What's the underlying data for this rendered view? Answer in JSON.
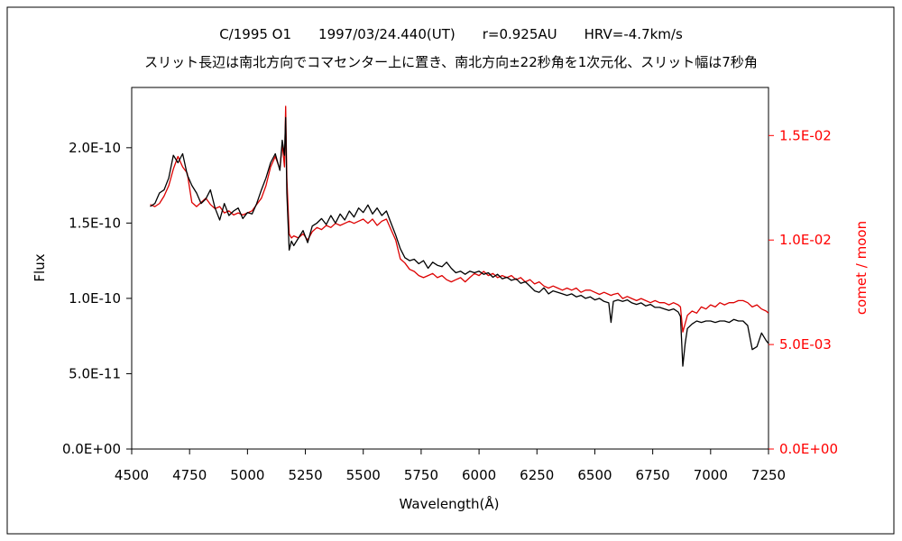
{
  "chart_data": {
    "type": "line",
    "title": "C/1995 O1　　1997/03/24.440(UT)　　r=0.925AU　　HRV=-4.7km/s",
    "subtitle": "スリット長辺は南北方向でコマセンター上に置き、南北方向±22秒角を1次元化、スリット幅は7秒角",
    "xlabel": "Wavelength(Å)",
    "ylabel": "Flux",
    "y2label": "comet / moon",
    "xlim": [
      4500,
      7250
    ],
    "ylim": [
      0,
      2.4e-10
    ],
    "y2lim": [
      0,
      0.0173
    ],
    "x_ticks": [
      "4500",
      "4750",
      "5000",
      "5250",
      "5500",
      "5750",
      "6000",
      "6250",
      "6500",
      "6750",
      "7000",
      "7250"
    ],
    "y_ticks": [
      "0.0E+00",
      "5.0E-11",
      "1.0E-10",
      "1.5E-10",
      "2.0E-10"
    ],
    "y2_ticks": [
      "0.0E+00",
      "5.0E-03",
      "1.0E-02",
      "1.5E-02"
    ],
    "colors": {
      "flux": "#000000",
      "ratio": "#dd0000",
      "axis": "#000000",
      "y2axis": "#ff0000"
    },
    "series": [
      {
        "axis": "left",
        "x": [
          4580,
          4600,
          4620,
          4640,
          4660,
          4680,
          4700,
          4720,
          4740,
          4760,
          4780,
          4800,
          4820,
          4840,
          4860,
          4880,
          4900,
          4920,
          4940,
          4960,
          4980,
          5000,
          5020,
          5040,
          5060,
          5080,
          5100,
          5120,
          5140,
          5150,
          5160,
          5165,
          5170,
          5180,
          5190,
          5200,
          5220,
          5240,
          5260,
          5280,
          5300,
          5320,
          5340,
          5360,
          5380,
          5400,
          5420,
          5440,
          5460,
          5480,
          5500,
          5520,
          5540,
          5560,
          5580,
          5600,
          5620,
          5640,
          5660,
          5680,
          5700,
          5720,
          5740,
          5760,
          5780,
          5800,
          5820,
          5840,
          5860,
          5880,
          5900,
          5920,
          5940,
          5960,
          5980,
          6000,
          6020,
          6040,
          6060,
          6080,
          6100,
          6120,
          6140,
          6160,
          6180,
          6200,
          6220,
          6240,
          6260,
          6280,
          6300,
          6320,
          6340,
          6360,
          6380,
          6400,
          6420,
          6440,
          6460,
          6480,
          6500,
          6520,
          6540,
          6560,
          6570,
          6580,
          6600,
          6620,
          6640,
          6660,
          6680,
          6700,
          6720,
          6740,
          6760,
          6780,
          6800,
          6820,
          6840,
          6860,
          6870,
          6880,
          6890,
          6900,
          6920,
          6940,
          6960,
          6980,
          7000,
          7020,
          7040,
          7060,
          7080,
          7100,
          7120,
          7140,
          7160,
          7180,
          7200,
          7220,
          7240,
          7250
        ],
        "y": [
          1.61e-10,
          1.63e-10,
          1.7e-10,
          1.72e-10,
          1.8e-10,
          1.95e-10,
          1.9e-10,
          1.96e-10,
          1.82e-10,
          1.75e-10,
          1.7e-10,
          1.63e-10,
          1.66e-10,
          1.72e-10,
          1.6e-10,
          1.52e-10,
          1.63e-10,
          1.55e-10,
          1.58e-10,
          1.6e-10,
          1.53e-10,
          1.57e-10,
          1.56e-10,
          1.63e-10,
          1.72e-10,
          1.8e-10,
          1.9e-10,
          1.96e-10,
          1.85e-10,
          2.05e-10,
          1.95e-10,
          2.2e-10,
          1.7e-10,
          1.32e-10,
          1.38e-10,
          1.35e-10,
          1.4e-10,
          1.45e-10,
          1.37e-10,
          1.48e-10,
          1.5e-10,
          1.53e-10,
          1.49e-10,
          1.55e-10,
          1.5e-10,
          1.56e-10,
          1.52e-10,
          1.58e-10,
          1.54e-10,
          1.6e-10,
          1.57e-10,
          1.62e-10,
          1.56e-10,
          1.6e-10,
          1.55e-10,
          1.58e-10,
          1.5e-10,
          1.42e-10,
          1.33e-10,
          1.27e-10,
          1.25e-10,
          1.26e-10,
          1.23e-10,
          1.25e-10,
          1.2e-10,
          1.24e-10,
          1.22e-10,
          1.21e-10,
          1.24e-10,
          1.2e-10,
          1.17e-10,
          1.18e-10,
          1.16e-10,
          1.18e-10,
          1.17e-10,
          1.18e-10,
          1.16e-10,
          1.17e-10,
          1.14e-10,
          1.16e-10,
          1.13e-10,
          1.14e-10,
          1.12e-10,
          1.13e-10,
          1.1e-10,
          1.11e-10,
          1.08e-10,
          1.05e-10,
          1.04e-10,
          1.07e-10,
          1.03e-10,
          1.05e-10,
          1.04e-10,
          1.03e-10,
          1.02e-10,
          1.03e-10,
          1.01e-10,
          1.02e-10,
          1e-10,
          1.01e-10,
          9.9e-11,
          1e-10,
          9.8e-11,
          9.7e-11,
          8.4e-11,
          9.8e-11,
          9.9e-11,
          9.8e-11,
          9.9e-11,
          9.7e-11,
          9.6e-11,
          9.7e-11,
          9.5e-11,
          9.6e-11,
          9.4e-11,
          9.4e-11,
          9.3e-11,
          9.2e-11,
          9.3e-11,
          9.1e-11,
          8.8e-11,
          5.5e-11,
          7e-11,
          8e-11,
          8.3e-11,
          8.5e-11,
          8.4e-11,
          8.5e-11,
          8.5e-11,
          8.4e-11,
          8.5e-11,
          8.5e-11,
          8.4e-11,
          8.6e-11,
          8.5e-11,
          8.5e-11,
          8.2e-11,
          6.6e-11,
          6.8e-11,
          7.7e-11,
          7.2e-11,
          7e-11
        ]
      },
      {
        "axis": "right",
        "x": [
          4580,
          4600,
          4620,
          4640,
          4660,
          4680,
          4700,
          4720,
          4740,
          4760,
          4780,
          4800,
          4820,
          4840,
          4860,
          4880,
          4900,
          4920,
          4940,
          4960,
          4980,
          5000,
          5020,
          5040,
          5060,
          5080,
          5100,
          5120,
          5140,
          5150,
          5160,
          5165,
          5170,
          5180,
          5190,
          5200,
          5220,
          5240,
          5260,
          5280,
          5300,
          5320,
          5340,
          5360,
          5380,
          5400,
          5420,
          5440,
          5460,
          5480,
          5500,
          5520,
          5540,
          5560,
          5580,
          5600,
          5620,
          5640,
          5660,
          5680,
          5700,
          5720,
          5740,
          5760,
          5780,
          5800,
          5820,
          5840,
          5860,
          5880,
          5900,
          5920,
          5940,
          5960,
          5980,
          6000,
          6020,
          6040,
          6060,
          6080,
          6100,
          6120,
          6140,
          6160,
          6180,
          6200,
          6220,
          6240,
          6260,
          6280,
          6300,
          6320,
          6340,
          6360,
          6380,
          6400,
          6420,
          6440,
          6460,
          6480,
          6500,
          6520,
          6540,
          6560,
          6570,
          6580,
          6600,
          6620,
          6640,
          6660,
          6680,
          6700,
          6720,
          6740,
          6760,
          6780,
          6800,
          6820,
          6840,
          6860,
          6870,
          6880,
          6890,
          6900,
          6920,
          6940,
          6960,
          6980,
          7000,
          7020,
          7040,
          7060,
          7080,
          7100,
          7120,
          7140,
          7160,
          7180,
          7200,
          7220,
          7240,
          7250
        ],
        "y": [
          0.0117,
          0.0116,
          0.01175,
          0.0121,
          0.0126,
          0.0134,
          0.014,
          0.0135,
          0.0132,
          0.0118,
          0.0116,
          0.0118,
          0.012,
          0.0117,
          0.0115,
          0.0116,
          0.0113,
          0.0114,
          0.0112,
          0.0113,
          0.0112,
          0.0113,
          0.0114,
          0.0117,
          0.012,
          0.0126,
          0.0135,
          0.014,
          0.0134,
          0.0146,
          0.0135,
          0.0164,
          0.013,
          0.0103,
          0.0101,
          0.0102,
          0.0101,
          0.0103,
          0.01,
          0.0104,
          0.0106,
          0.0105,
          0.0107,
          0.0106,
          0.0108,
          0.0107,
          0.0108,
          0.0109,
          0.0108,
          0.0109,
          0.011,
          0.0108,
          0.011,
          0.0107,
          0.0109,
          0.011,
          0.0105,
          0.01,
          0.0091,
          0.0089,
          0.0086,
          0.0085,
          0.0083,
          0.0082,
          0.0083,
          0.0084,
          0.0082,
          0.0083,
          0.0081,
          0.008,
          0.0081,
          0.0082,
          0.008,
          0.0082,
          0.0084,
          0.0083,
          0.0085,
          0.0083,
          0.0084,
          0.0082,
          0.0083,
          0.0082,
          0.0083,
          0.0081,
          0.0082,
          0.008,
          0.0081,
          0.0079,
          0.008,
          0.0078,
          0.0077,
          0.0078,
          0.0077,
          0.0076,
          0.0077,
          0.0076,
          0.0077,
          0.0075,
          0.0076,
          0.0076,
          0.0075,
          0.0074,
          0.0075,
          0.0074,
          0.00735,
          0.0074,
          0.00745,
          0.0072,
          0.0073,
          0.0072,
          0.0071,
          0.0072,
          0.0071,
          0.007,
          0.0071,
          0.007,
          0.007,
          0.0069,
          0.007,
          0.0069,
          0.0068,
          0.0056,
          0.006,
          0.0064,
          0.0066,
          0.0065,
          0.0068,
          0.0067,
          0.0069,
          0.0068,
          0.007,
          0.0069,
          0.007,
          0.007,
          0.0071,
          0.0071,
          0.007,
          0.0068,
          0.0069,
          0.0067,
          0.0066,
          0.0065
        ]
      }
    ]
  }
}
